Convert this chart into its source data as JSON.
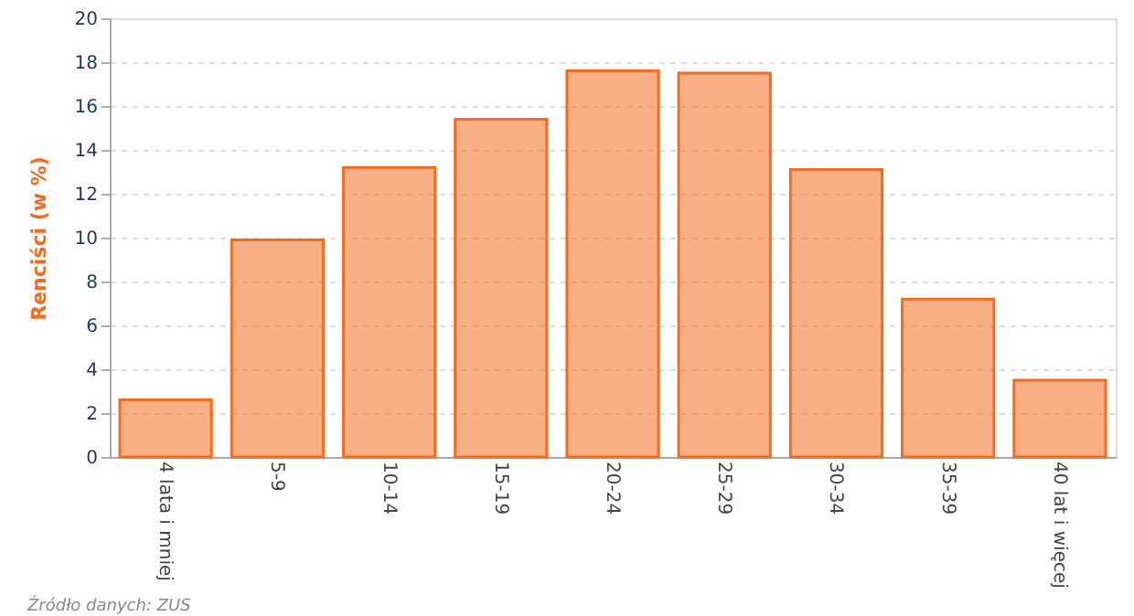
{
  "chart_data": {
    "type": "bar",
    "ylabel": "Renciści (w %)",
    "categories": [
      "4 lata i mniej",
      "5-9",
      "10-14",
      "15-19",
      "20-24",
      "25-29",
      "30-34",
      "35-39",
      "40 lat i więcej"
    ],
    "values": [
      2.6,
      9.9,
      13.2,
      15.4,
      17.6,
      17.5,
      13.1,
      7.2,
      3.5
    ],
    "color": "#f26d21",
    "ylim": [
      0,
      20
    ],
    "yticks": [
      0,
      2,
      4,
      6,
      8,
      10,
      12,
      14,
      16,
      18,
      20
    ],
    "grid": "y",
    "annotations": [
      "Źródło danych: ZUS"
    ]
  }
}
